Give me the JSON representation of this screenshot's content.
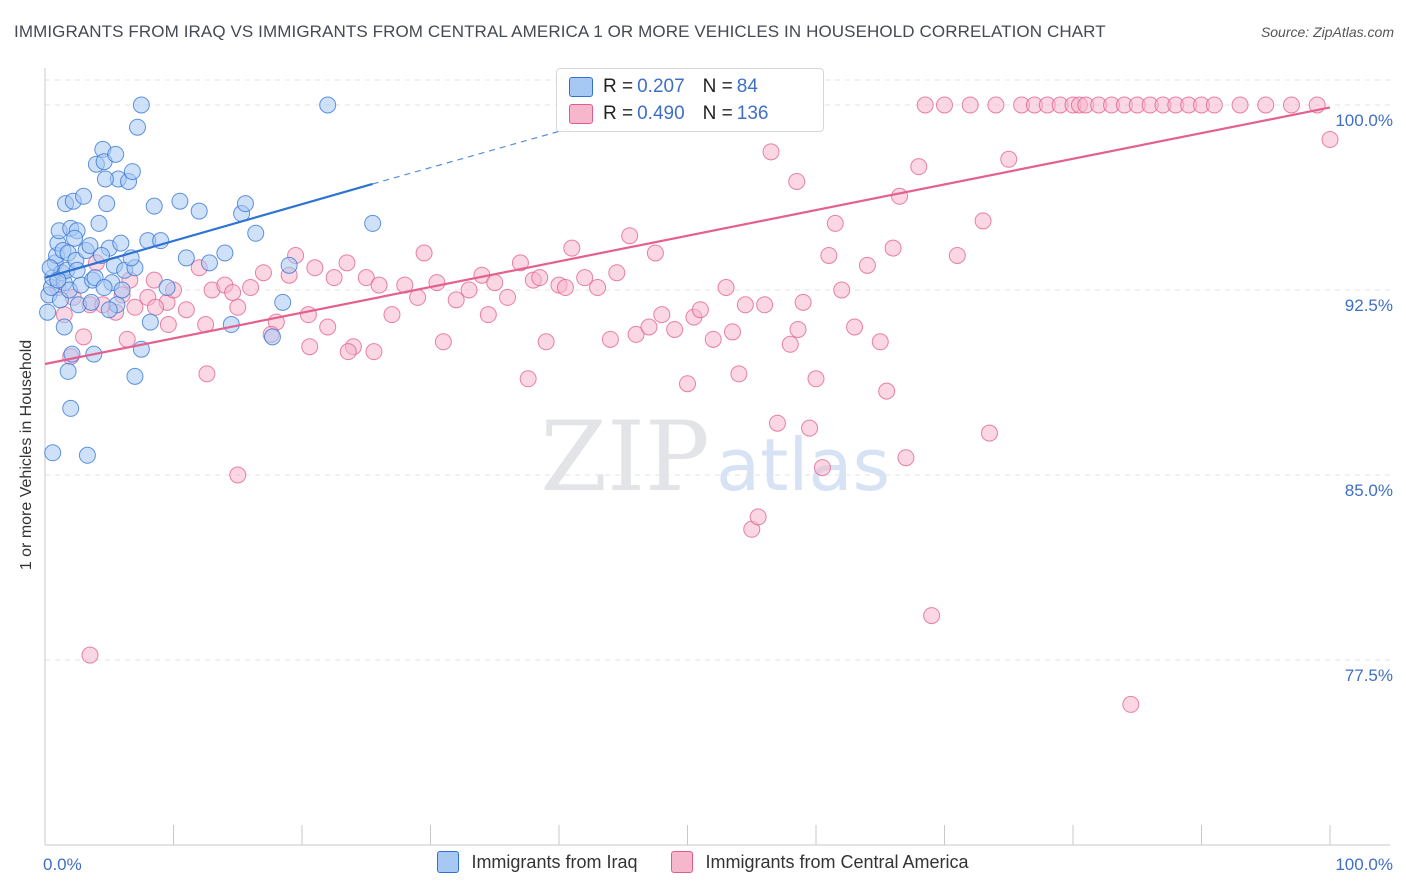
{
  "header": {
    "title": "IMMIGRANTS FROM IRAQ VS IMMIGRANTS FROM CENTRAL AMERICA 1 OR MORE VEHICLES IN HOUSEHOLD CORRELATION CHART",
    "source": "Source: ZipAtlas.com"
  },
  "watermark": {
    "zip": "ZIP",
    "atlas": "atlas"
  },
  "colors": {
    "iraq_fill": "#a8c8f4",
    "iraq_stroke": "#2f72d2",
    "iraq_line": "#2e73d2",
    "ca_fill": "#f6b7cc",
    "ca_stroke": "#e15b8e",
    "ca_line": "#e4608f",
    "grid": "#e3e3e3",
    "axis": "#c8c8c8",
    "tick_text": "#3f6fc5"
  },
  "legend": {
    "rows": [
      {
        "r_label": "R = ",
        "r_value": "0.207",
        "n_label": "N = ",
        "n_value": "84",
        "color": "#a8c8f4"
      },
      {
        "r_label": "R = ",
        "r_value": "0.490",
        "n_label": "N = ",
        "n_value": "136",
        "color": "#f6b7cc"
      }
    ]
  },
  "chart_data": {
    "type": "scatter",
    "title": "IMMIGRANTS FROM IRAQ VS IMMIGRANTS FROM CENTRAL AMERICA 1 OR MORE VEHICLES IN HOUSEHOLD CORRELATION CHART",
    "xlabel": "",
    "ylabel": "1 or more Vehicles in Household",
    "xlim": [
      0,
      100
    ],
    "ylim": [
      70.0,
      101.5
    ],
    "x_tick_labels": [
      "0.0%",
      "100.0%"
    ],
    "y_ticks": [
      77.5,
      85.0,
      92.5,
      100.0
    ],
    "y_tick_labels": [
      "77.5%",
      "85.0%",
      "92.5%",
      "100.0%"
    ],
    "grid": true,
    "legend_position": "top-center",
    "series": [
      {
        "name": "Immigrants from Iraq",
        "R": 0.207,
        "N": 84,
        "trend": {
          "x": [
            0,
            25.5
          ],
          "y": [
            93.0,
            96.8
          ],
          "dashed_extension_to": [
            42.5,
            99.3
          ]
        },
        "points": [
          [
            0.3,
            92.3
          ],
          [
            0.5,
            92.6
          ],
          [
            0.6,
            93.0
          ],
          [
            0.8,
            93.6
          ],
          [
            0.9,
            93.9
          ],
          [
            1.0,
            94.4
          ],
          [
            1.1,
            94.9
          ],
          [
            1.2,
            92.1
          ],
          [
            1.3,
            93.2
          ],
          [
            1.4,
            94.1
          ],
          [
            1.5,
            92.8
          ],
          [
            1.6,
            96.0
          ],
          [
            1.7,
            93.3
          ],
          [
            1.8,
            94.0
          ],
          [
            1.9,
            92.5
          ],
          [
            2.0,
            95.0
          ],
          [
            2.2,
            96.1
          ],
          [
            2.4,
            93.7
          ],
          [
            2.5,
            94.9
          ],
          [
            2.6,
            91.9
          ],
          [
            2.8,
            92.7
          ],
          [
            3.0,
            96.3
          ],
          [
            3.2,
            94.1
          ],
          [
            3.5,
            94.3
          ],
          [
            3.7,
            92.9
          ],
          [
            3.9,
            93.0
          ],
          [
            4.0,
            97.6
          ],
          [
            4.2,
            95.2
          ],
          [
            4.5,
            98.2
          ],
          [
            4.6,
            97.7
          ],
          [
            4.8,
            96.0
          ],
          [
            5.0,
            94.2
          ],
          [
            5.2,
            92.8
          ],
          [
            5.4,
            93.5
          ],
          [
            5.5,
            98.0
          ],
          [
            5.7,
            97.0
          ],
          [
            5.9,
            94.4
          ],
          [
            6.2,
            93.3
          ],
          [
            6.5,
            96.9
          ],
          [
            6.8,
            97.3
          ],
          [
            7.2,
            99.1
          ],
          [
            7.5,
            100.0
          ],
          [
            8.0,
            94.5
          ],
          [
            4.7,
            97.0
          ],
          [
            3.8,
            89.9
          ],
          [
            2.1,
            89.9
          ],
          [
            1.8,
            89.2
          ],
          [
            2.0,
            87.7
          ],
          [
            3.3,
            85.8
          ],
          [
            4.6,
            92.6
          ],
          [
            5.6,
            91.9
          ],
          [
            7.0,
            89.0
          ],
          [
            7.5,
            90.1
          ],
          [
            9.5,
            92.6
          ],
          [
            10.5,
            96.1
          ],
          [
            12.0,
            95.7
          ],
          [
            12.8,
            93.6
          ],
          [
            14.5,
            91.1
          ],
          [
            15.3,
            95.6
          ],
          [
            15.6,
            96.0
          ],
          [
            16.4,
            94.8
          ],
          [
            17.7,
            90.6
          ],
          [
            18.5,
            92.0
          ],
          [
            19.0,
            93.5
          ],
          [
            14.0,
            94.0
          ],
          [
            22.0,
            100.0
          ],
          [
            8.5,
            95.9
          ],
          [
            7.0,
            93.4
          ],
          [
            6.0,
            92.5
          ],
          [
            5.0,
            91.7
          ],
          [
            9.0,
            94.5
          ],
          [
            11.0,
            93.8
          ],
          [
            25.5,
            95.2
          ],
          [
            8.2,
            91.2
          ],
          [
            6.7,
            93.8
          ],
          [
            1.5,
            91.0
          ],
          [
            2.5,
            93.3
          ],
          [
            3.6,
            92.0
          ],
          [
            4.4,
            93.9
          ],
          [
            0.2,
            91.6
          ],
          [
            0.4,
            93.4
          ],
          [
            0.6,
            85.9
          ],
          [
            1.0,
            92.9
          ],
          [
            2.3,
            94.6
          ]
        ]
      },
      {
        "name": "Immigrants from Central America",
        "R": 0.49,
        "N": 136,
        "trend": {
          "x": [
            0,
            100
          ],
          "y": [
            89.5,
            99.9
          ]
        },
        "points": [
          [
            1.0,
            92.6
          ],
          [
            1.5,
            91.5
          ],
          [
            2.2,
            92.2
          ],
          [
            3.0,
            90.6
          ],
          [
            3.5,
            91.9
          ],
          [
            4.5,
            91.9
          ],
          [
            5.5,
            91.6
          ],
          [
            6.0,
            92.3
          ],
          [
            6.4,
            90.5
          ],
          [
            7.0,
            91.8
          ],
          [
            8.0,
            92.2
          ],
          [
            8.5,
            92.9
          ],
          [
            9.5,
            92.0
          ],
          [
            10.0,
            92.5
          ],
          [
            11.0,
            91.7
          ],
          [
            12.0,
            93.4
          ],
          [
            12.5,
            91.1
          ],
          [
            13.0,
            92.5
          ],
          [
            14.0,
            92.7
          ],
          [
            15.0,
            91.8
          ],
          [
            16.0,
            92.6
          ],
          [
            17.0,
            93.2
          ],
          [
            18.0,
            91.2
          ],
          [
            19.0,
            93.1
          ],
          [
            19.5,
            93.9
          ],
          [
            20.5,
            91.5
          ],
          [
            21.0,
            93.4
          ],
          [
            22.0,
            91.0
          ],
          [
            22.5,
            93.0
          ],
          [
            23.5,
            93.6
          ],
          [
            24.0,
            90.2
          ],
          [
            25.0,
            93.0
          ],
          [
            26.0,
            92.7
          ],
          [
            27.0,
            91.5
          ],
          [
            28.0,
            92.7
          ],
          [
            29.0,
            92.2
          ],
          [
            29.5,
            94.0
          ],
          [
            30.5,
            92.8
          ],
          [
            31.0,
            90.4
          ],
          [
            32.0,
            92.1
          ],
          [
            33.0,
            92.5
          ],
          [
            34.0,
            93.1
          ],
          [
            34.5,
            91.5
          ],
          [
            35.0,
            92.8
          ],
          [
            36.0,
            92.2
          ],
          [
            37.0,
            93.6
          ],
          [
            38.0,
            92.9
          ],
          [
            38.5,
            93.0
          ],
          [
            39.0,
            90.4
          ],
          [
            40.0,
            92.7
          ],
          [
            40.5,
            92.6
          ],
          [
            41.0,
            94.2
          ],
          [
            42.0,
            93.0
          ],
          [
            43.0,
            92.6
          ],
          [
            44.0,
            90.5
          ],
          [
            44.5,
            93.2
          ],
          [
            45.5,
            94.7
          ],
          [
            46.0,
            90.7
          ],
          [
            47.0,
            91.0
          ],
          [
            47.5,
            94.0
          ],
          [
            48.0,
            91.5
          ],
          [
            49.0,
            90.9
          ],
          [
            50.0,
            88.7
          ],
          [
            50.5,
            91.4
          ],
          [
            51.0,
            91.7
          ],
          [
            52.0,
            90.5
          ],
          [
            53.0,
            92.6
          ],
          [
            53.5,
            90.8
          ],
          [
            54.0,
            89.1
          ],
          [
            54.5,
            91.9
          ],
          [
            55.0,
            82.8
          ],
          [
            55.5,
            83.3
          ],
          [
            56.0,
            91.9
          ],
          [
            56.5,
            98.1
          ],
          [
            57.0,
            87.1
          ],
          [
            58.0,
            90.3
          ],
          [
            58.5,
            96.9
          ],
          [
            59.0,
            92.0
          ],
          [
            59.5,
            86.9
          ],
          [
            60.0,
            88.9
          ],
          [
            60.5,
            85.3
          ],
          [
            61.0,
            93.9
          ],
          [
            61.5,
            95.2
          ],
          [
            62.0,
            92.5
          ],
          [
            63.0,
            91.0
          ],
          [
            64.0,
            93.5
          ],
          [
            65.0,
            90.4
          ],
          [
            65.5,
            88.4
          ],
          [
            66.0,
            94.2
          ],
          [
            66.5,
            96.3
          ],
          [
            67.0,
            85.7
          ],
          [
            68.0,
            97.5
          ],
          [
            68.5,
            100.0
          ],
          [
            69.0,
            79.3
          ],
          [
            70.0,
            100.0
          ],
          [
            71.0,
            93.9
          ],
          [
            72.0,
            100.0
          ],
          [
            73.0,
            95.3
          ],
          [
            73.5,
            86.7
          ],
          [
            74.0,
            100.0
          ],
          [
            75.0,
            97.8
          ],
          [
            76.0,
            100.0
          ],
          [
            77.0,
            100.0
          ],
          [
            78.0,
            100.0
          ],
          [
            79.0,
            100.0
          ],
          [
            80.0,
            100.0
          ],
          [
            80.5,
            100.0
          ],
          [
            81.0,
            100.0
          ],
          [
            82.0,
            100.0
          ],
          [
            83.0,
            100.0
          ],
          [
            84.0,
            100.0
          ],
          [
            84.5,
            75.7
          ],
          [
            85.0,
            100.0
          ],
          [
            86.0,
            100.0
          ],
          [
            87.0,
            100.0
          ],
          [
            88.0,
            100.0
          ],
          [
            89.0,
            100.0
          ],
          [
            90.0,
            100.0
          ],
          [
            91.0,
            100.0
          ],
          [
            93.0,
            100.0
          ],
          [
            95.0,
            100.0
          ],
          [
            97.0,
            100.0
          ],
          [
            99.0,
            100.0
          ],
          [
            100.0,
            98.6
          ],
          [
            15.0,
            85.0
          ],
          [
            3.5,
            77.7
          ],
          [
            2.0,
            89.8
          ],
          [
            4.0,
            93.6
          ],
          [
            6.6,
            92.9
          ],
          [
            8.6,
            91.8
          ],
          [
            9.6,
            91.1
          ],
          [
            12.6,
            89.1
          ],
          [
            14.6,
            92.4
          ],
          [
            17.6,
            90.7
          ],
          [
            20.6,
            90.2
          ],
          [
            23.6,
            90.0
          ],
          [
            25.6,
            90.0
          ],
          [
            37.6,
            88.9
          ],
          [
            58.6,
            90.9
          ]
        ]
      }
    ]
  },
  "bottom_legend": {
    "iraq_label": "Immigrants from Iraq",
    "ca_label": "Immigrants from Central America"
  }
}
